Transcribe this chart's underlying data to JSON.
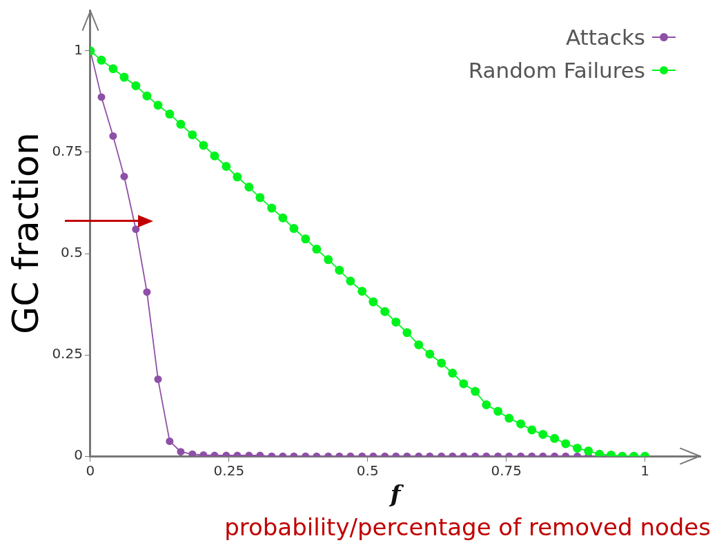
{
  "chart_data": {
    "type": "line",
    "xlabel": "f",
    "ylabel": "GC fraction",
    "annotations": [
      "probability/percentage of removed nodes"
    ],
    "xlim": [
      0,
      1.1
    ],
    "ylim": [
      0,
      1.1
    ],
    "xticks": [
      0,
      0.25,
      0.5,
      0.75,
      1
    ],
    "yticks": [
      0,
      0.25,
      0.5,
      0.75,
      1
    ],
    "grid": false,
    "legend": "top right",
    "marker": "circle",
    "line_style": "solid",
    "series": [
      {
        "name": "Attacks",
        "color": "#8e4fa6",
        "x": [
          0,
          0.02,
          0.041,
          0.061,
          0.082,
          0.102,
          0.122,
          0.143,
          0.163,
          0.184,
          0.204,
          0.224,
          0.245,
          0.265,
          0.286,
          0.306,
          0.327,
          0.347,
          0.367,
          0.388,
          0.408,
          0.429,
          0.449,
          0.469,
          0.49,
          0.51,
          0.531,
          0.551,
          0.571,
          0.592,
          0.612,
          0.633,
          0.653,
          0.673,
          0.694,
          0.714,
          0.735,
          0.755,
          0.776,
          0.796,
          0.816,
          0.837,
          0.857,
          0.878,
          0.898,
          0.918
        ],
        "values": [
          1,
          0.886,
          0.79,
          0.69,
          0.56,
          0.405,
          0.19,
          0.037,
          0.011,
          0.005,
          0.003,
          0.002,
          0.002,
          0.002,
          0.002,
          0.002,
          0,
          0,
          0,
          0,
          0,
          0,
          0,
          0,
          0,
          0,
          0,
          0,
          0,
          0,
          0,
          0,
          0,
          0,
          0,
          0,
          0,
          0,
          0,
          0,
          0,
          0,
          0,
          0,
          0,
          0
        ]
      },
      {
        "name": "Random Failures",
        "color": "#00f21d",
        "x": [
          0,
          0.02,
          0.041,
          0.061,
          0.082,
          0.102,
          0.122,
          0.143,
          0.163,
          0.184,
          0.204,
          0.224,
          0.245,
          0.265,
          0.286,
          0.306,
          0.327,
          0.347,
          0.367,
          0.388,
          0.408,
          0.429,
          0.449,
          0.469,
          0.49,
          0.51,
          0.531,
          0.551,
          0.571,
          0.592,
          0.612,
          0.633,
          0.653,
          0.673,
          0.694,
          0.714,
          0.735,
          0.755,
          0.776,
          0.796,
          0.816,
          0.837,
          0.857,
          0.878,
          0.898,
          0.918,
          0.939,
          0.959,
          0.98,
          1
        ],
        "values": [
          1,
          0.977,
          0.956,
          0.935,
          0.914,
          0.889,
          0.866,
          0.844,
          0.819,
          0.793,
          0.767,
          0.741,
          0.715,
          0.689,
          0.664,
          0.638,
          0.612,
          0.588,
          0.562,
          0.536,
          0.511,
          0.485,
          0.459,
          0.432,
          0.407,
          0.381,
          0.357,
          0.331,
          0.305,
          0.275,
          0.252,
          0.23,
          0.205,
          0.179,
          0.16,
          0.127,
          0.111,
          0.094,
          0.08,
          0.065,
          0.054,
          0.044,
          0.031,
          0.02,
          0.013,
          0.005,
          0.003,
          0,
          0,
          0
        ]
      }
    ]
  }
}
